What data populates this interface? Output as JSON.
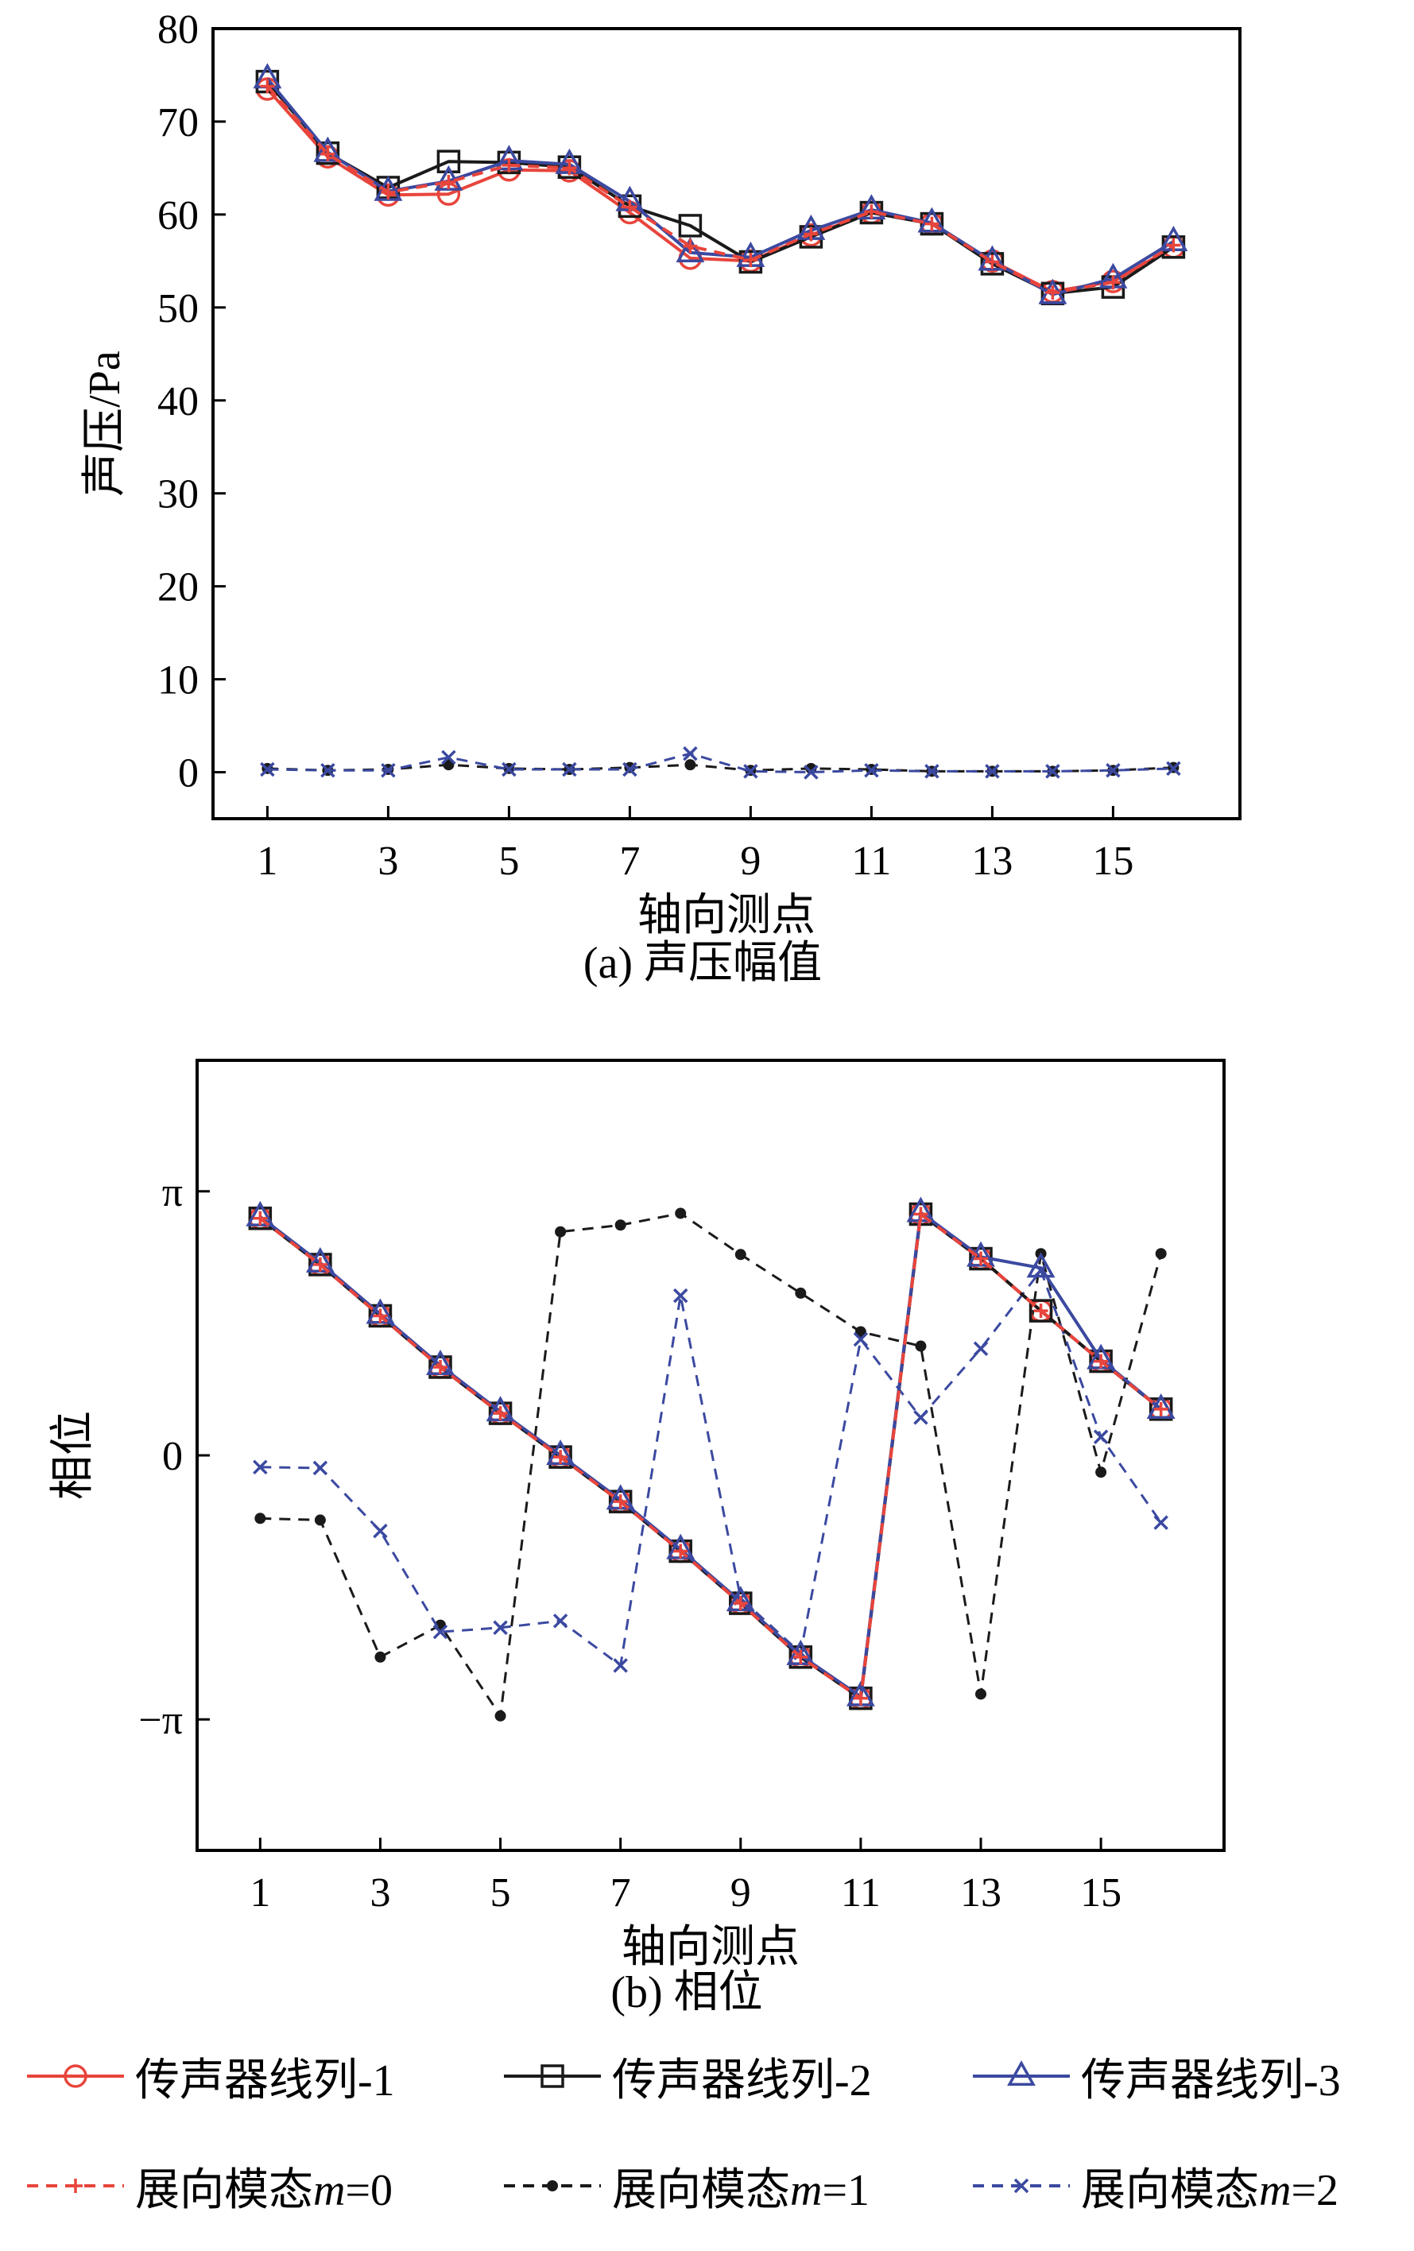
{
  "panels": [
    {
      "caption": "(a) 声压幅值",
      "chart_data": {
        "type": "line",
        "xlabel": "轴向测点",
        "ylabel": "声压/Pa",
        "x": [
          1,
          2,
          3,
          4,
          5,
          6,
          7,
          8,
          9,
          10,
          11,
          12,
          13,
          14,
          15,
          16
        ],
        "xticks": [
          "1",
          "3",
          "5",
          "7",
          "9",
          "11",
          "13",
          "15"
        ],
        "xlim": [
          0.1,
          17.1
        ],
        "ylim": [
          -5,
          80
        ],
        "yticks": [
          "0",
          "10",
          "20",
          "30",
          "40",
          "50",
          "60",
          "70",
          "80"
        ],
        "series": [
          {
            "name": "传声器线列-1",
            "values": [
              73.5,
              66.2,
              62.1,
              62.2,
              64.8,
              64.7,
              60.2,
              55.3,
              55.0,
              57.8,
              60.2,
              59.0,
              55.0,
              51.7,
              52.8,
              56.5
            ]
          },
          {
            "name": "传声器线列-2",
            "values": [
              74.3,
              66.6,
              62.9,
              65.7,
              65.6,
              65.1,
              60.9,
              58.8,
              54.9,
              57.6,
              60.2,
              59.0,
              54.7,
              51.5,
              52.2,
              56.5
            ]
          },
          {
            "name": "传声器线列-3",
            "values": [
              74.6,
              66.7,
              62.5,
              63.6,
              65.8,
              65.4,
              61.4,
              55.9,
              55.4,
              58.3,
              60.5,
              59.1,
              55.0,
              51.4,
              53.1,
              57.1
            ]
          },
          {
            "name": "展向模态m=0",
            "values": [
              73.8,
              66.5,
              62.4,
              63.5,
              65.3,
              65.0,
              60.8,
              56.6,
              55.1,
              57.9,
              60.3,
              59.0,
              54.9,
              51.6,
              52.7,
              56.7
            ]
          },
          {
            "name": "展向模态m=1",
            "values": [
              0.4,
              0.2,
              0.3,
              0.8,
              0.4,
              0.3,
              0.5,
              0.8,
              0.2,
              0.4,
              0.3,
              0.1,
              0.1,
              0.1,
              0.2,
              0.5
            ]
          },
          {
            "name": "展向模态m=2",
            "values": [
              0.3,
              0.2,
              0.2,
              1.6,
              0.3,
              0.3,
              0.3,
              2.0,
              0.1,
              0.0,
              0.2,
              0.1,
              0.1,
              0.1,
              0.2,
              0.4
            ]
          }
        ]
      }
    },
    {
      "caption": "(b) 相位",
      "chart_data": {
        "type": "line",
        "xlabel": "轴向测点",
        "ylabel": "相位",
        "x": [
          1,
          2,
          3,
          4,
          5,
          6,
          7,
          8,
          9,
          10,
          11,
          12,
          13,
          14,
          15,
          16
        ],
        "xticks": [
          "1",
          "3",
          "5",
          "7",
          "9",
          "11",
          "13",
          "15"
        ],
        "xlim": [
          -0.05,
          17.05
        ],
        "ylim": [
          -4.7,
          4.7
        ],
        "yticks": [
          "π",
          "0",
          "−π"
        ],
        "ytick_values": [
          3.14159,
          0,
          -3.14159
        ],
        "series": [
          {
            "name": "传声器线列-1",
            "values": [
              2.82,
              2.27,
              1.66,
              1.05,
              0.5,
              -0.02,
              -0.55,
              -1.14,
              -1.76,
              -2.4,
              -2.89,
              2.87,
              2.34,
              1.72,
              1.12,
              0.55
            ]
          },
          {
            "name": "传声器线列-2",
            "values": [
              2.82,
              2.27,
              1.66,
              1.05,
              0.5,
              -0.02,
              -0.55,
              -1.14,
              -1.76,
              -2.4,
              -2.89,
              2.87,
              2.34,
              1.72,
              1.12,
              0.55
            ]
          },
          {
            "name": "传声器线列-3",
            "values": [
              2.84,
              2.29,
              1.68,
              1.07,
              0.52,
              0.0,
              -0.53,
              -1.12,
              -1.74,
              -2.38,
              -2.87,
              2.89,
              2.36,
              2.23,
              1.14,
              0.55
            ]
          },
          {
            "name": "展向模态m=0",
            "values": [
              2.82,
              2.27,
              1.66,
              1.05,
              0.5,
              -0.02,
              -0.55,
              -1.14,
              -1.76,
              -2.4,
              -2.89,
              2.87,
              2.34,
              1.72,
              1.12,
              0.55
            ]
          },
          {
            "name": "展向模态m=1",
            "values": [
              -0.75,
              -0.77,
              -2.4,
              -2.02,
              -3.1,
              2.66,
              2.74,
              2.88,
              2.39,
              1.93,
              1.47,
              1.3,
              -2.84,
              2.4,
              -0.2,
              2.4
            ]
          },
          {
            "name": "展向模态m=2",
            "values": [
              -0.14,
              -0.15,
              -0.9,
              -2.1,
              -2.05,
              -1.97,
              -2.5,
              1.9,
              -1.7,
              -2.35,
              1.38,
              0.45,
              1.27,
              2.2,
              0.22,
              -0.8
            ]
          }
        ]
      }
    }
  ],
  "legend": [
    {
      "label": "传声器线列-",
      "suffix": "1",
      "color": "#e8453c",
      "dash": "solid",
      "marker": "circle"
    },
    {
      "label": "传声器线列-",
      "suffix": "2",
      "color": "#1a1a1a",
      "dash": "solid",
      "marker": "square"
    },
    {
      "label": "传声器线列-",
      "suffix": "3",
      "color": "#3b49a0",
      "dash": "solid",
      "marker": "triangle"
    },
    {
      "label": "展向模态",
      "italic": "m",
      "suffix": "=0",
      "color": "#e8453c",
      "dash": "dashed",
      "marker": "plus"
    },
    {
      "label": "展向模态",
      "italic": "m",
      "suffix": "=1",
      "color": "#1a1a1a",
      "dash": "dashed",
      "marker": "dot"
    },
    {
      "label": "展向模态",
      "italic": "m",
      "suffix": "=2",
      "color": "#3b49a0",
      "dash": "dashed",
      "marker": "cross"
    }
  ],
  "colors": {
    "red": "#e8453c",
    "black": "#1a1a1a",
    "blue": "#3b49a0"
  }
}
